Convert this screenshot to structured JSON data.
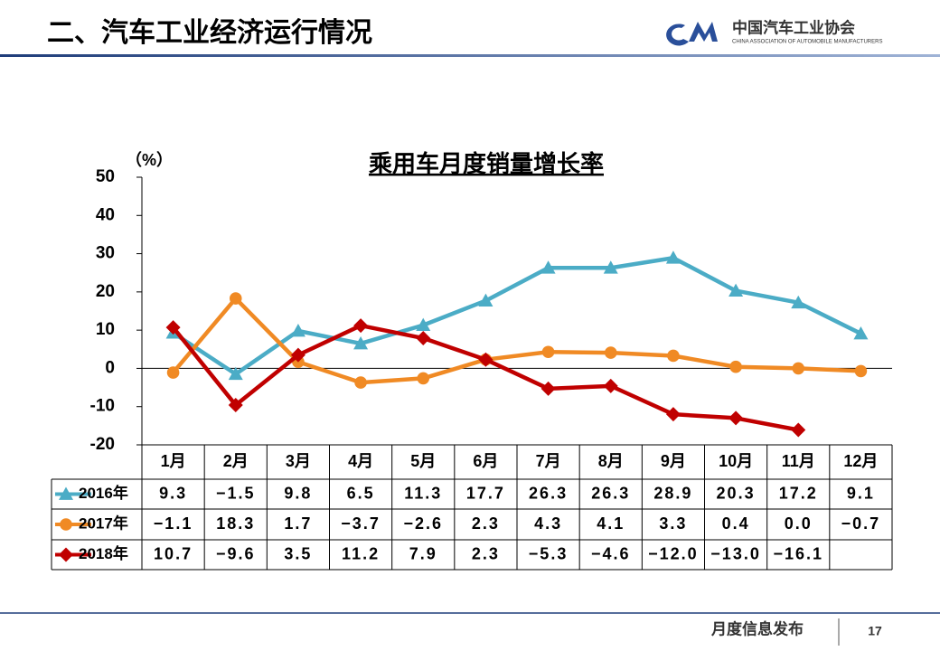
{
  "header": {
    "title": "二、汽车工业经济运行情况",
    "logo_name": "中国汽车工业协会",
    "logo_subtitle": "CHINA ASSOCIATION OF AUTOMOBILE MANUFACTURERS"
  },
  "footer": {
    "text": "月度信息发布",
    "page": "17"
  },
  "chart_data": {
    "type": "line",
    "title": "乘用车月度销量增长率",
    "y_unit": "（%）",
    "categories": [
      "1月",
      "2月",
      "3月",
      "4月",
      "5月",
      "6月",
      "7月",
      "8月",
      "9月",
      "10月",
      "11月",
      "12月"
    ],
    "ylim": [
      -20,
      50
    ],
    "yticks": [
      50,
      40,
      30,
      20,
      10,
      0,
      -10,
      -20
    ],
    "series": [
      {
        "name": "2016年",
        "color": "#4bacc6",
        "marker": "triangle",
        "values": [
          9.3,
          -1.5,
          9.8,
          6.5,
          11.3,
          17.7,
          26.3,
          26.3,
          28.9,
          20.3,
          17.2,
          9.1
        ],
        "value_labels": [
          "9.3",
          "−1.5",
          "9.8",
          "6.5",
          "11.3",
          "17.7",
          "26.3",
          "26.3",
          "28.9",
          "20.3",
          "17.2",
          "9.1"
        ]
      },
      {
        "name": "2017年",
        "color": "#f08a24",
        "marker": "circle",
        "values": [
          -1.1,
          18.3,
          1.7,
          -3.7,
          -2.6,
          2.3,
          4.3,
          4.1,
          3.3,
          0.4,
          0.0,
          -0.7
        ],
        "value_labels": [
          "−1.1",
          "18.3",
          "1.7",
          "−3.7",
          "−2.6",
          "2.3",
          "4.3",
          "4.1",
          "3.3",
          "0.4",
          "0.0",
          "−0.7"
        ]
      },
      {
        "name": "2018年",
        "color": "#c00000",
        "marker": "diamond",
        "values": [
          10.7,
          -9.6,
          3.5,
          11.2,
          7.9,
          2.3,
          -5.3,
          -4.6,
          -12.0,
          -13.0,
          -16.1,
          null
        ],
        "value_labels": [
          "10.7",
          "−9.6",
          "3.5",
          "11.2",
          "7.9",
          "2.3",
          "−5.3",
          "−4.6",
          "−12.0",
          "−13.0",
          "−16.1",
          null
        ]
      }
    ]
  }
}
